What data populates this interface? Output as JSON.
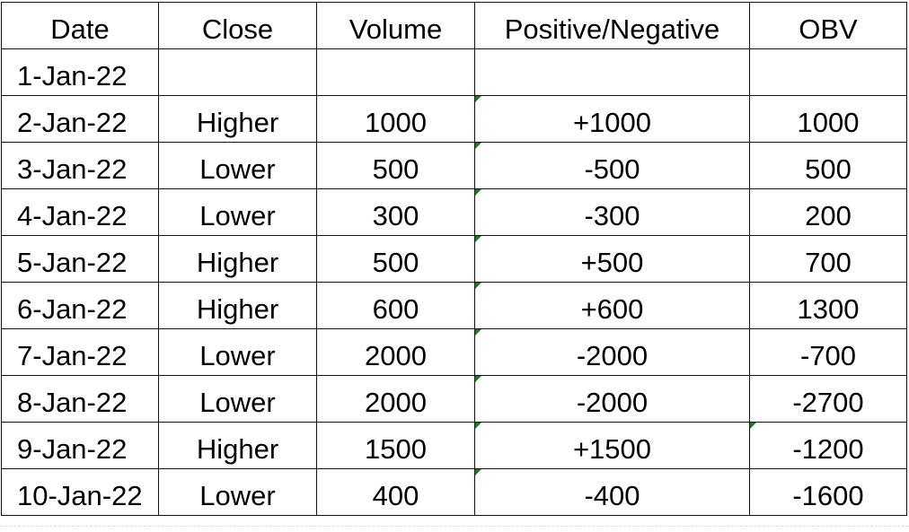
{
  "columns": [
    "Date",
    "Close",
    "Volume",
    "Positive/Negative",
    "OBV"
  ],
  "rows": [
    {
      "date": "1-Jan-22",
      "close": "",
      "volume": "",
      "posneg": "",
      "obv": "",
      "flag_posneg": false,
      "flag_obv": false
    },
    {
      "date": "2-Jan-22",
      "close": "Higher",
      "volume": "1000",
      "posneg": "+1000",
      "obv": "1000",
      "flag_posneg": true,
      "flag_obv": false
    },
    {
      "date": "3-Jan-22",
      "close": "Lower",
      "volume": "500",
      "posneg": "-500",
      "obv": "500",
      "flag_posneg": true,
      "flag_obv": false
    },
    {
      "date": "4-Jan-22",
      "close": "Lower",
      "volume": "300",
      "posneg": "-300",
      "obv": "200",
      "flag_posneg": true,
      "flag_obv": false
    },
    {
      "date": "5-Jan-22",
      "close": "Higher",
      "volume": "500",
      "posneg": "+500",
      "obv": "700",
      "flag_posneg": true,
      "flag_obv": false
    },
    {
      "date": "6-Jan-22",
      "close": "Higher",
      "volume": "600",
      "posneg": "+600",
      "obv": "1300",
      "flag_posneg": true,
      "flag_obv": false
    },
    {
      "date": "7-Jan-22",
      "close": "Lower",
      "volume": "2000",
      "posneg": "-2000",
      "obv": "-700",
      "flag_posneg": true,
      "flag_obv": false
    },
    {
      "date": "8-Jan-22",
      "close": "Lower",
      "volume": "2000",
      "posneg": "-2000",
      "obv": "-2700",
      "flag_posneg": true,
      "flag_obv": false
    },
    {
      "date": "9-Jan-22",
      "close": "Higher",
      "volume": "1500",
      "posneg": "+1500",
      "obv": "-1200",
      "flag_posneg": true,
      "flag_obv": true
    },
    {
      "date": "10-Jan-22",
      "close": "Lower",
      "volume": "400",
      "posneg": "-400",
      "obv": "-1600",
      "flag_posneg": true,
      "flag_obv": false
    }
  ],
  "colors": {
    "border": "#111111",
    "error_flag": "#1e7a1e"
  }
}
